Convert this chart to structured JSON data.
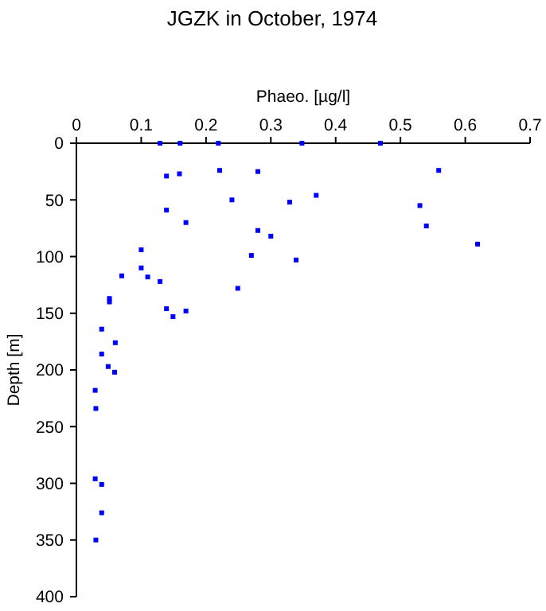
{
  "chart_data": {
    "type": "scatter",
    "title": "JGZK in October, 1974",
    "xlabel": "Phaeo. [µg/l]",
    "ylabel": "Depth [m]",
    "xlim": [
      0,
      0.7
    ],
    "xticks": [
      0,
      0.1,
      0.2,
      0.3,
      0.4,
      0.5,
      0.6,
      0.7
    ],
    "ylim": [
      400,
      0
    ],
    "yticks": [
      0,
      50,
      100,
      150,
      200,
      250,
      300,
      350,
      400
    ],
    "marker": "square",
    "grid": false,
    "series": [
      {
        "color": "#0000ff",
        "x": [
          0.129,
          0.16,
          0.219,
          0.348,
          0.469,
          0.559,
          0.139,
          0.159,
          0.221,
          0.28,
          0.24,
          0.329,
          0.37,
          0.53,
          0.139,
          0.169,
          0.54,
          0.28,
          0.3,
          0.619,
          0.1,
          0.27,
          0.339,
          0.1,
          0.07,
          0.11,
          0.129,
          0.249,
          0.051,
          0.051,
          0.139,
          0.149,
          0.169,
          0.039,
          0.06,
          0.039,
          0.049,
          0.059,
          0.029,
          0.03,
          0.029,
          0.039,
          0.039,
          0.03
        ],
        "values": [
          0,
          0,
          0,
          0,
          0,
          24,
          29,
          27,
          24,
          25,
          50,
          52,
          46,
          55,
          59,
          70,
          73,
          77,
          82,
          89,
          94,
          99,
          103,
          110,
          117,
          118,
          122,
          128,
          137,
          140,
          146,
          153,
          148,
          164,
          176,
          186,
          197,
          202,
          218,
          234,
          296,
          301,
          326,
          350
        ]
      }
    ]
  }
}
